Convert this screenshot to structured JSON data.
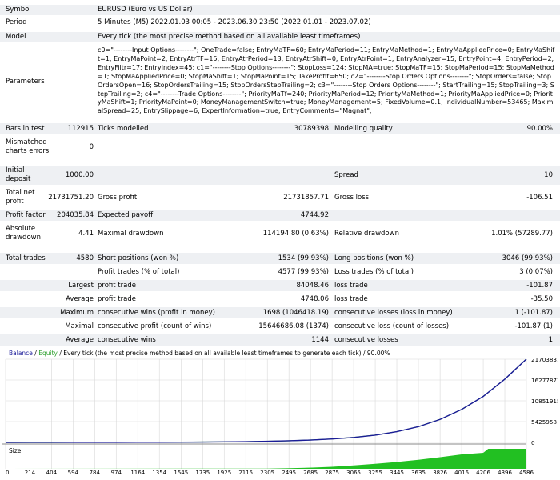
{
  "report": {
    "symbol": {
      "label": "Symbol",
      "value": "EURUSD (Euro vs US Dollar)"
    },
    "period": {
      "label": "Period",
      "value": "5 Minutes (M5) 2022.01.03 00:05 - 2023.06.30 23:50 (2022.01.01 - 2023.07.02)"
    },
    "model": {
      "label": "Model",
      "value": "Every tick (the most precise method based on all available least timeframes)"
    },
    "parameters": {
      "label": "Parameters",
      "value": "c0=\"--------Input Options--------\"; OneTrade=false; EntryMaTF=60; EntryMaPeriod=11; EntryMaMethod=1; EntryMaAppliedPrice=0; EntryMaShift=1; EntryMaPoint=2; EntryAtrTF=15; EntryAtrPeriod=13; EntryAtrShift=0; EntryAtrPoint=1; EntryAnalyzer=15; EntryPoint=4; EntryPeriod=2; EntryFiltr=17; EntryIndex=45; c1=\"--------Stop Options--------\"; StopLoss=124; StopMA=true; StopMaTF=15; StopMaPeriod=15; StopMaMethod=1; StopMaAppliedPrice=0; StopMaShift=1; StopMaPoint=15; TakeProfit=650; c2=\"--------Stop Orders Options--------\"; StopOrders=false; StopOrdersOpen=16; StopOrdersTrailing=15; StopOrdersStepTrailing=2; c3=\"--------Stop Orders Options--------\"; StartTrailing=15; StopTrailing=3; StepTrailing=2; c4=\"--------Trade Options--------\"; PriorityMaTf=240; PriorityMaPeriod=12; PriorityMaMethod=1; PriorityMaAppliedPrice=0; PriorityMaShift=1; PriorityMaPoint=0; MoneyManagementSwitch=true; MoneyManagement=5; FixedVolume=0.1; IndividualNumber=53465; MaximalSpread=25; EntrySlippage=6; ExpertInformation=true; EntryComments=\"Magnat\";"
    },
    "bars": {
      "label": "Bars in test",
      "value": "112915"
    },
    "ticks": {
      "label": "Ticks modelled",
      "value": "30789398"
    },
    "quality": {
      "label": "Modelling quality",
      "value": "90.00%"
    },
    "mismatched": {
      "label1": "Mismatched",
      "label2": "charts errors",
      "value": "0"
    },
    "deposit": {
      "label1": "Initial",
      "label2": "deposit",
      "value": "1000.00"
    },
    "spread": {
      "label": "Spread",
      "value": "10"
    },
    "net_profit": {
      "label1": "Total net",
      "label2": "profit",
      "value": "21731751.20"
    },
    "gross_profit": {
      "label": "Gross profit",
      "value": "21731857.71"
    },
    "gross_loss": {
      "label": "Gross loss",
      "value": "-106.51"
    },
    "profit_factor": {
      "label": "Profit factor",
      "value": "204035.84"
    },
    "expected_payoff": {
      "label": "Expected payoff",
      "value": "4744.92"
    },
    "abs_drawdown": {
      "label1": "Absolute",
      "label2": "drawdown",
      "value": "4.41"
    },
    "max_drawdown": {
      "label": "Maximal drawdown",
      "value": "114194.80 (0.63%)"
    },
    "rel_drawdown": {
      "label": "Relative drawdown",
      "value": "1.01% (57289.77)"
    },
    "total_trades": {
      "label": "Total trades",
      "value": "4580"
    },
    "short_pos": {
      "label": "Short positions (won %)",
      "value": "1534 (99.93%)"
    },
    "long_pos": {
      "label": "Long positions (won %)",
      "value": "3046 (99.93%)"
    },
    "profit_trades": {
      "label": "Profit trades (% of total)",
      "value": "4577 (99.93%)"
    },
    "loss_trades": {
      "label": "Loss trades (% of total)",
      "value": "3 (0.07%)"
    },
    "largest": {
      "prefix": "Largest",
      "profit_label": "profit trade",
      "profit_value": "84048.46",
      "loss_label": "loss trade",
      "loss_value": "-101.87"
    },
    "average": {
      "prefix": "Average",
      "profit_label": "profit trade",
      "profit_value": "4748.06",
      "loss_label": "loss trade",
      "loss_value": "-35.50"
    },
    "maximum": {
      "prefix": "Maximum",
      "wins_label": "consecutive wins (profit in money)",
      "wins_value": "1698 (1046418.19)",
      "losses_label": "consecutive losses (loss in money)",
      "losses_value": "1 (-101.87)"
    },
    "maximal": {
      "prefix": "Maximal",
      "profit_label": "consecutive profit (count of wins)",
      "profit_value": "15646686.08 (1374)",
      "loss_label": "consecutive loss (count of losses)",
      "loss_value": "-101.87 (1)"
    },
    "avg_consec": {
      "prefix": "Average",
      "wins_label": "consecutive wins",
      "wins_value": "1144",
      "losses_label": "consecutive losses",
      "losses_value": "1"
    }
  },
  "chart": {
    "legend_balance": "Balance",
    "legend_sep": " / ",
    "legend_equity": "Equity",
    "legend_rest": " / Every tick (the most precise method based on all available least timeframes to generate each tick) / 90.00%",
    "size_label": "Size",
    "colors": {
      "balance": "#1c1c99",
      "equity": "#2ea02e",
      "size": "#22c022",
      "grid": "#d8d8d8"
    }
  },
  "chart_data": {
    "type": "line",
    "title": "Balance / Equity / Every tick (the most precise method based on all available least timeframes to generate each tick) / 90.00%",
    "x": [
      0,
      214,
      404,
      594,
      784,
      974,
      1164,
      1354,
      1545,
      1735,
      1925,
      2115,
      2305,
      2495,
      2685,
      2875,
      3065,
      3255,
      3445,
      3635,
      3826,
      4016,
      4206,
      4396,
      4586
    ],
    "x_ticks": [
      "0",
      "214",
      "404",
      "594",
      "784",
      "974",
      "1164",
      "1354",
      "1545",
      "1735",
      "1925",
      "2115",
      "2305",
      "2495",
      "2685",
      "2875",
      "3065",
      "3255",
      "3445",
      "3635",
      "3826",
      "4016",
      "4206",
      "4396",
      "4586"
    ],
    "y_ticks": [
      "0",
      "5425958",
      "10851915",
      "16277873",
      "21703831"
    ],
    "ylim": [
      0,
      21703831
    ],
    "xlim": [
      0,
      4586
    ],
    "series": [
      {
        "name": "Balance",
        "x": [
          0,
          214,
          404,
          594,
          784,
          974,
          1164,
          1354,
          1545,
          1735,
          1925,
          2115,
          2305,
          2495,
          2685,
          2875,
          3065,
          3255,
          3445,
          3635,
          3826,
          4016,
          4206,
          4396,
          4586
        ],
        "values": [
          1000,
          3000,
          6000,
          10000,
          16000,
          24000,
          35000,
          50000,
          70000,
          100000,
          140000,
          200000,
          290000,
          420000,
          620000,
          900000,
          1300000,
          1900000,
          2800000,
          4100000,
          6000000,
          8600000,
          12000000,
          16500000,
          21731751
        ]
      },
      {
        "name": "Equity",
        "x": [
          0,
          214,
          404,
          594,
          784,
          974,
          1164,
          1354,
          1545,
          1735,
          1925,
          2115,
          2305,
          2495,
          2685,
          2875,
          3065,
          3255,
          3445,
          3635,
          3826,
          4016,
          4206,
          4396,
          4586
        ],
        "values": [
          1000,
          3000,
          6000,
          10000,
          16000,
          24000,
          35000,
          50000,
          70000,
          100000,
          140000,
          200000,
          290000,
          420000,
          620000,
          900000,
          1300000,
          1900000,
          2800000,
          4100000,
          6000000,
          8600000,
          12000000,
          16500000,
          21731751
        ]
      }
    ],
    "size_series": {
      "name": "Size",
      "x": [
        0,
        2300,
        2500,
        2700,
        2875,
        3065,
        3255,
        3445,
        3635,
        3826,
        4016,
        4206,
        4250,
        4396,
        4586
      ],
      "values": [
        0,
        0.01,
        0.03,
        0.06,
        0.1,
        0.17,
        0.25,
        0.34,
        0.45,
        0.58,
        0.72,
        0.8,
        1,
        1,
        1
      ]
    }
  }
}
